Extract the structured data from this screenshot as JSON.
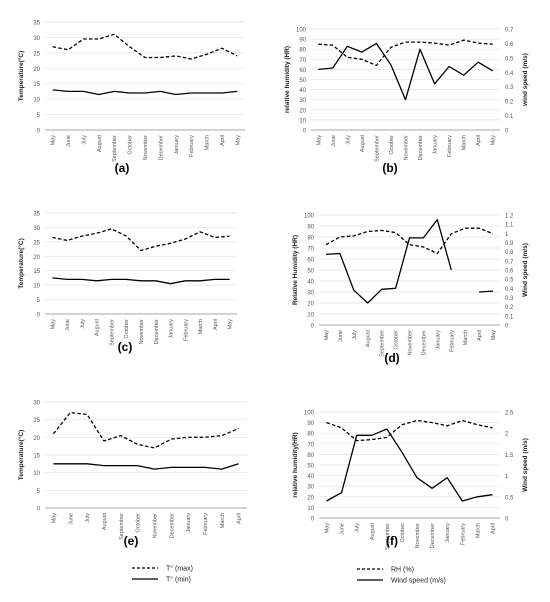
{
  "legends": {
    "temp": [
      {
        "label": "T° (max)",
        "style": "dashed"
      },
      {
        "label": "T° (min)",
        "style": "solid"
      }
    ],
    "hum": [
      {
        "label": "RH (%)",
        "style": "dashed"
      },
      {
        "label": "Wind speed  (m/s)",
        "style": "solid"
      }
    ]
  },
  "chart_data": [
    {
      "id": "a",
      "panel_label": "(a)",
      "type": "line",
      "categories": [
        "May",
        "June",
        "July",
        "August",
        "September",
        "October",
        "November",
        "December",
        "January",
        "February",
        "March",
        "April",
        "May"
      ],
      "ylabel": "Temperature(°C)",
      "ylim": [
        0,
        35
      ],
      "yticks": [
        0,
        5,
        10,
        15,
        20,
        25,
        30,
        35
      ],
      "series": [
        {
          "values": [
            27,
            26,
            29.5,
            29.5,
            31,
            27,
            23.5,
            23.5,
            24,
            23,
            24.5,
            26.5,
            24
          ],
          "style": "dashed"
        },
        {
          "values": [
            13,
            12.5,
            12.5,
            11.5,
            12.5,
            12,
            12,
            12.5,
            11.5,
            12,
            12,
            12,
            12.5
          ],
          "style": "solid"
        }
      ]
    },
    {
      "id": "b",
      "panel_label": "(b)",
      "type": "line",
      "categories": [
        "May",
        "June",
        "July",
        "August",
        "September",
        "October",
        "November",
        "December",
        "January",
        "February",
        "March",
        "April",
        "May"
      ],
      "ylabel": "relative humidity (HR)",
      "ylim": [
        0,
        100
      ],
      "yticks": [
        0,
        10,
        20,
        30,
        40,
        50,
        60,
        70,
        80,
        90,
        100
      ],
      "y2label": "wind speed (m/s)",
      "y2lim": [
        0,
        0.7
      ],
      "y2ticks": [
        0,
        0.1,
        0.2,
        0.3,
        0.4,
        0.5,
        0.6,
        0.7
      ],
      "series": [
        {
          "values": [
            85,
            84,
            72,
            70,
            64,
            82,
            87,
            87,
            86,
            84,
            89,
            86,
            85
          ],
          "style": "dashed",
          "axis": "left"
        },
        {
          "values": [
            0.42,
            0.43,
            0.58,
            0.54,
            0.6,
            0.45,
            0.21,
            0.56,
            0.32,
            0.44,
            0.38,
            0.47,
            0.41
          ],
          "style": "solid",
          "axis": "right"
        }
      ]
    },
    {
      "id": "c",
      "panel_label": "(c)",
      "type": "line",
      "categories": [
        "May",
        "June",
        "July",
        "August",
        "September",
        "October",
        "November",
        "December",
        "January",
        "February",
        "March",
        "April",
        "May"
      ],
      "ylabel": "Temperature(°C)",
      "ylim": [
        0,
        35
      ],
      "yticks": [
        0,
        5,
        10,
        15,
        20,
        25,
        30,
        35
      ],
      "series": [
        {
          "values": [
            26.5,
            25.5,
            27,
            28,
            29.5,
            27,
            22,
            23.5,
            24.5,
            26,
            28.5,
            26.5,
            27
          ],
          "style": "dashed"
        },
        {
          "values": [
            12.5,
            12,
            12,
            11.5,
            12,
            12,
            11.5,
            11.5,
            10.5,
            11.5,
            11.5,
            12,
            12
          ],
          "style": "solid"
        }
      ]
    },
    {
      "id": "d",
      "panel_label": "(d)",
      "type": "line",
      "categories": [
        "May",
        "June",
        "July",
        "August",
        "September",
        "October",
        "November",
        "December",
        "January",
        "February",
        "March",
        "April",
        "May"
      ],
      "ylabel": "Relative Humidity (HR)",
      "ylim": [
        0,
        100
      ],
      "yticks": [
        0,
        10,
        20,
        30,
        40,
        50,
        60,
        70,
        80,
        90,
        100
      ],
      "y2label": "Wind speed (m/s)",
      "y2lim": [
        0,
        1.2
      ],
      "y2ticks": [
        0,
        0.1,
        0.2,
        0.3,
        0.4,
        0.5,
        0.6,
        0.7,
        0.8,
        0.9,
        1.0,
        1.1,
        1.2
      ],
      "series": [
        {
          "values": [
            73,
            80,
            81,
            85,
            86,
            84,
            73,
            71,
            65,
            83,
            88,
            88,
            83
          ],
          "style": "dashed",
          "axis": "left"
        },
        {
          "values": [
            0.77,
            0.78,
            0.38,
            0.24,
            0.39,
            0.4,
            0.95,
            0.95,
            1.15,
            0.6,
            null,
            0.36,
            0.37
          ],
          "style": "solid",
          "axis": "right"
        }
      ]
    },
    {
      "id": "e",
      "panel_label": "(e)",
      "type": "line",
      "categories": [
        "May",
        "June",
        "July",
        "August",
        "September",
        "October",
        "November",
        "December",
        "January",
        "February",
        "March",
        "April"
      ],
      "ylabel": "Temperature(°C)",
      "ylim": [
        0,
        30
      ],
      "yticks": [
        0,
        5,
        10,
        15,
        20,
        25,
        30
      ],
      "series": [
        {
          "values": [
            21,
            27,
            26.5,
            19,
            20.5,
            18,
            17,
            19.5,
            20,
            20,
            20.5,
            22.5
          ],
          "style": "dashed"
        },
        {
          "values": [
            12.5,
            12.5,
            12.5,
            12,
            12,
            12,
            11,
            11.5,
            11.5,
            11.5,
            11,
            12.5
          ],
          "style": "solid"
        }
      ]
    },
    {
      "id": "f",
      "panel_label": "(f)",
      "type": "line",
      "categories": [
        "May",
        "June",
        "July",
        "August",
        "September",
        "October",
        "November",
        "December",
        "January",
        "February",
        "March",
        "April"
      ],
      "ylabel": "relative humidity(HR)",
      "ylim": [
        0,
        100
      ],
      "yticks": [
        0,
        10,
        20,
        30,
        40,
        50,
        60,
        70,
        80,
        90,
        100
      ],
      "y2label": "Wind speed (m/s)",
      "y2lim": [
        0,
        2.5
      ],
      "y2ticks": [
        0,
        0.5,
        1,
        1.5,
        2,
        2.5
      ],
      "series": [
        {
          "values": [
            90,
            85,
            73,
            74,
            76,
            88,
            92,
            90,
            87,
            92,
            88,
            85
          ],
          "style": "dashed",
          "axis": "left"
        },
        {
          "values": [
            0.4,
            0.6,
            1.95,
            1.95,
            2.1,
            1.55,
            0.95,
            0.7,
            0.95,
            0.4,
            0.5,
            0.55
          ],
          "style": "solid",
          "axis": "right"
        }
      ]
    }
  ]
}
